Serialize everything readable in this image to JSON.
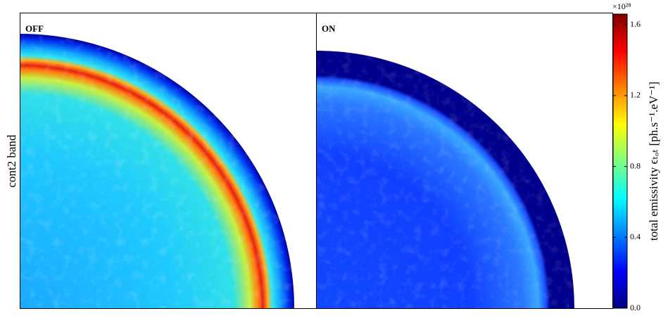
{
  "chart_data": {
    "type": "heatmap",
    "panels": [
      "OFF",
      "ON"
    ],
    "ylabel": "cont2 band",
    "colorbar_label": "total emissivity   ϵₜₒₜ   [ph.s⁻¹.eV⁻¹]",
    "colorbar_multiplier": "×10²⁸",
    "ylim": [
      0,
      1.66
    ],
    "yticks": [
      {
        "value": 0,
        "label": "0.0"
      },
      0.4,
      0.8,
      1.2,
      1.6
    ],
    "colormap": [
      "#00007f",
      "#0000ff",
      "#0080ff",
      "#00ffff",
      "#80ff80",
      "#ffff00",
      "#ff8000",
      "#ff0000",
      "#7f0000"
    ]
  }
}
